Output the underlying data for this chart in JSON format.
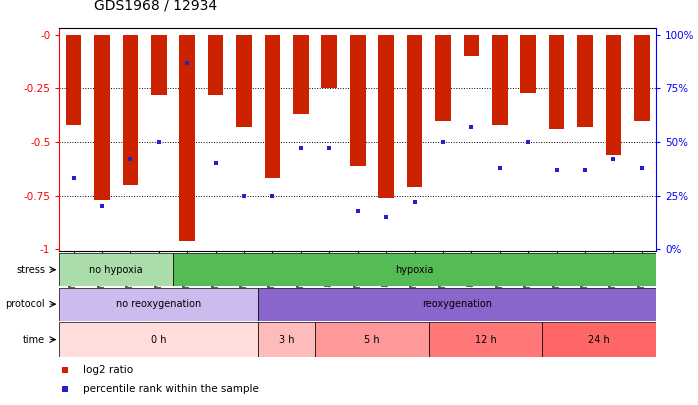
{
  "title": "GDS1968 / 12934",
  "samples": [
    "GSM16836",
    "GSM16837",
    "GSM16838",
    "GSM16839",
    "GSM16784",
    "GSM16814",
    "GSM16815",
    "GSM16816",
    "GSM16817",
    "GSM16818",
    "GSM16819",
    "GSM16821",
    "GSM16824",
    "GSM16826",
    "GSM16828",
    "GSM16830",
    "GSM16831",
    "GSM16832",
    "GSM16833",
    "GSM16834",
    "GSM16835"
  ],
  "log2_ratio": [
    -0.42,
    -0.77,
    -0.7,
    -0.28,
    -0.96,
    -0.28,
    -0.43,
    -0.67,
    -0.37,
    -0.25,
    -0.61,
    -0.76,
    -0.71,
    -0.4,
    -0.1,
    -0.42,
    -0.27,
    -0.44,
    -0.43,
    -0.56,
    -0.4
  ],
  "percentile_rank": [
    0.33,
    0.2,
    0.42,
    0.5,
    0.87,
    0.4,
    0.25,
    0.25,
    0.47,
    0.47,
    0.18,
    0.15,
    0.22,
    0.5,
    0.57,
    0.38,
    0.5,
    0.37,
    0.37,
    0.42,
    0.38
  ],
  "bar_color": "#cc2200",
  "dot_color": "#2222cc",
  "stress_groups": [
    {
      "label": "no hypoxia",
      "start": 0,
      "end": 4,
      "color": "#aaddaa"
    },
    {
      "label": "hypoxia",
      "start": 4,
      "end": 21,
      "color": "#55bb55"
    }
  ],
  "protocol_groups": [
    {
      "label": "no reoxygenation",
      "start": 0,
      "end": 7,
      "color": "#ccbbee"
    },
    {
      "label": "reoxygenation",
      "start": 7,
      "end": 21,
      "color": "#8866cc"
    }
  ],
  "time_groups": [
    {
      "label": "0 h",
      "start": 0,
      "end": 7,
      "color": "#ffdddd"
    },
    {
      "label": "3 h",
      "start": 7,
      "end": 9,
      "color": "#ffbbbb"
    },
    {
      "label": "5 h",
      "start": 9,
      "end": 13,
      "color": "#ff9999"
    },
    {
      "label": "12 h",
      "start": 13,
      "end": 17,
      "color": "#ff7777"
    },
    {
      "label": "24 h",
      "start": 17,
      "end": 21,
      "color": "#ff6666"
    }
  ],
  "legend_items": [
    {
      "label": "log2 ratio",
      "color": "#cc2200"
    },
    {
      "label": "percentile rank within the sample",
      "color": "#2222cc"
    }
  ]
}
